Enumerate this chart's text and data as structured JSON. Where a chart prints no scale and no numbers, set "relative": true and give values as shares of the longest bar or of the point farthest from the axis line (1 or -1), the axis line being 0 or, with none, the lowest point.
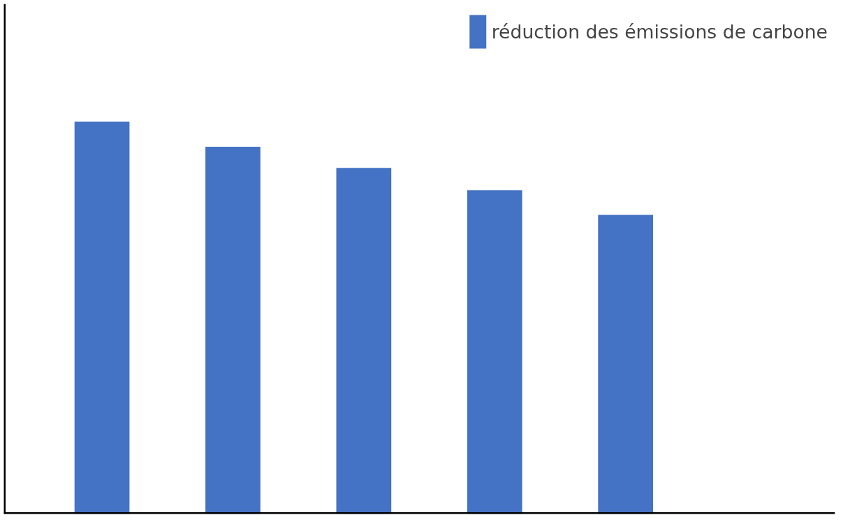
{
  "chart_data": {
    "type": "bar",
    "relative": true,
    "categories": [
      null,
      null,
      null,
      null,
      null
    ],
    "series": [
      {
        "name": "réduction des émissions de carbone",
        "color": "#4472c4",
        "values": [
          1,
          0.936,
          0.882,
          0.825,
          0.762
        ]
      }
    ],
    "legend": "top right",
    "grid": false
  }
}
